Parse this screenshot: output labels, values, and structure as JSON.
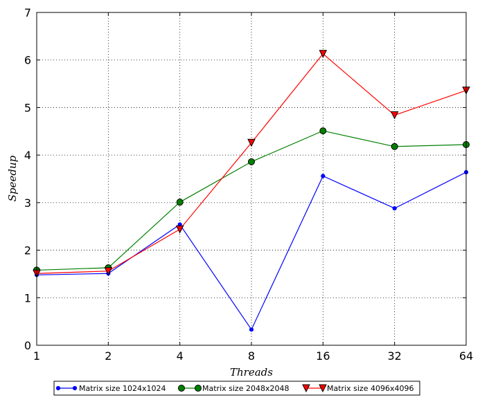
{
  "chart_data": {
    "type": "line",
    "x_scale": "log2",
    "x": [
      1,
      2,
      4,
      8,
      16,
      32,
      64
    ],
    "x_tick_labels": [
      "1",
      "2",
      "4",
      "8",
      "16",
      "32",
      "64"
    ],
    "y_tick_labels": [
      "0",
      "1",
      "2",
      "3",
      "4",
      "5",
      "6",
      "7"
    ],
    "xlabel": "Threads",
    "ylabel": "Speedup",
    "xlim": [
      1,
      64
    ],
    "ylim": [
      0,
      7
    ],
    "grid": true,
    "legend_position": "bottom",
    "series": [
      {
        "name": "Matrix size 1024x1024",
        "color": "#0000ff",
        "marker": "small-circle",
        "values": [
          1.48,
          1.51,
          2.54,
          0.33,
          3.56,
          2.88,
          3.64
        ]
      },
      {
        "name": "Matrix size 2048x2048",
        "color": "#008000",
        "marker": "circle",
        "values": [
          1.58,
          1.63,
          3.01,
          3.86,
          4.51,
          4.18,
          4.22
        ]
      },
      {
        "name": "Matrix size 4096x4096",
        "color": "#ff0000",
        "marker": "triangle-down",
        "values": [
          1.51,
          1.56,
          2.44,
          4.26,
          6.13,
          4.84,
          5.36
        ]
      }
    ]
  }
}
